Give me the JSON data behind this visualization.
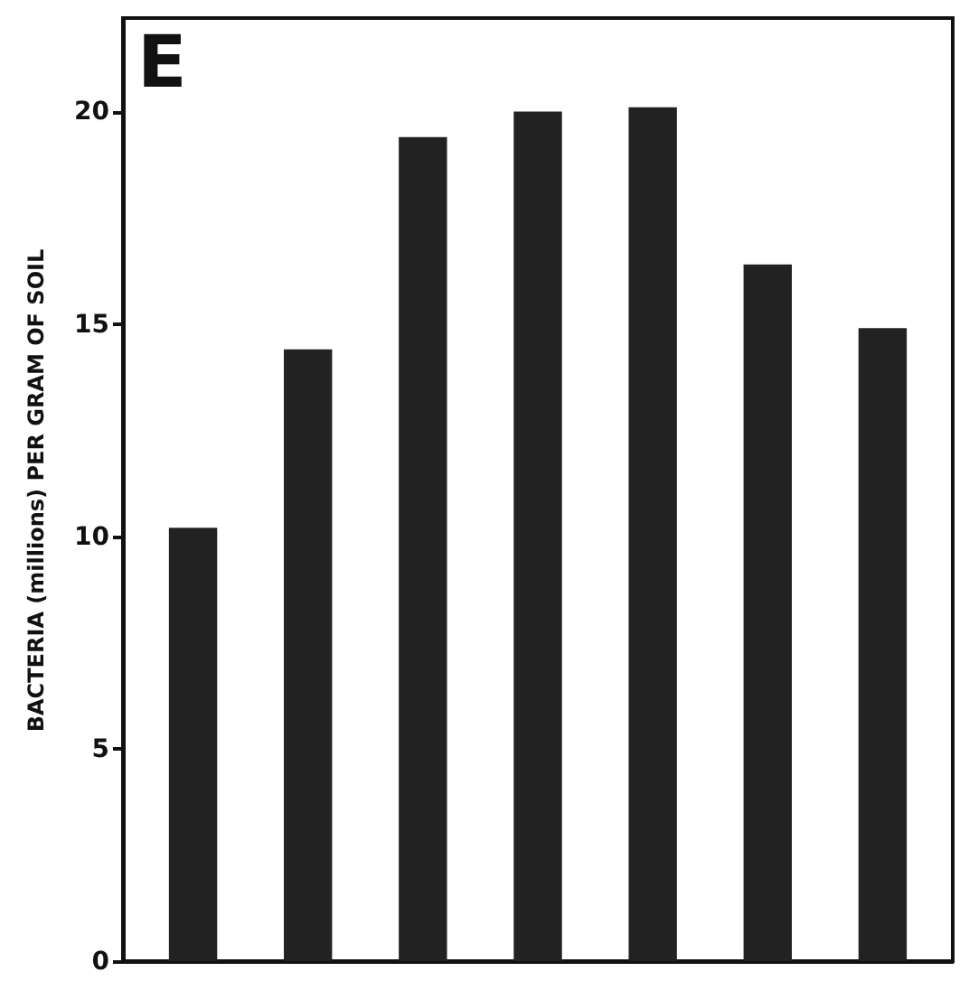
{
  "chart_data": {
    "type": "bar",
    "ylabel": "BACTERIA (millions) PER GRAM OF SOIL",
    "annotations": [
      "E"
    ],
    "categories": [
      null,
      null,
      null,
      null,
      null,
      null,
      null
    ],
    "values": [
      10.2,
      14.4,
      19.4,
      20.0,
      20.1,
      16.4,
      14.9
    ],
    "color": "#222222",
    "ylim": [
      0,
      22.2
    ],
    "yticks": [
      0,
      5,
      10,
      15,
      20
    ],
    "grid": false
  }
}
